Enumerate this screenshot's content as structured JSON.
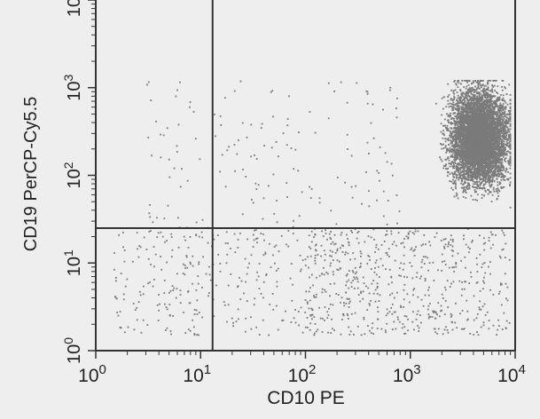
{
  "chart_data": {
    "type": "scatter",
    "title": "",
    "xlabel": "CD10 PE",
    "ylabel": "CD19 PerCP-Cy5.5",
    "x_scale": "log",
    "y_scale": "log",
    "xlim": [
      1,
      10000
    ],
    "ylim": [
      1,
      10000
    ],
    "x_ticks": [
      {
        "base": "10",
        "exp": "0"
      },
      {
        "base": "10",
        "exp": "1"
      },
      {
        "base": "10",
        "exp": "2"
      },
      {
        "base": "10",
        "exp": "3"
      },
      {
        "base": "10",
        "exp": "4"
      }
    ],
    "y_ticks": [
      {
        "base": "10",
        "exp": "0"
      },
      {
        "base": "10",
        "exp": "1"
      },
      {
        "base": "10",
        "exp": "2"
      },
      {
        "base": "10",
        "exp": "3"
      }
    ],
    "quadrant_gates": {
      "x": 13,
      "y": 25
    },
    "populations": [
      {
        "description": "dense cluster",
        "x_range": [
          800,
          9000
        ],
        "y_range": [
          25,
          1200
        ],
        "count": 6500
      },
      {
        "description": "scattered low-low",
        "x_range": [
          1.5,
          300
        ],
        "y_range": [
          1.5,
          25
        ],
        "count": 350
      },
      {
        "description": "scattered low-right",
        "x_range": [
          100,
          9000
        ],
        "y_range": [
          1.5,
          25
        ],
        "count": 550
      },
      {
        "description": "scattered upper",
        "x_range": [
          3,
          800
        ],
        "y_range": [
          25,
          1200
        ],
        "count": 160
      }
    ],
    "colors": {
      "points": "#7a7a7a",
      "axes": "#333333",
      "gates": "#333333",
      "background": "#eeeeee"
    }
  }
}
